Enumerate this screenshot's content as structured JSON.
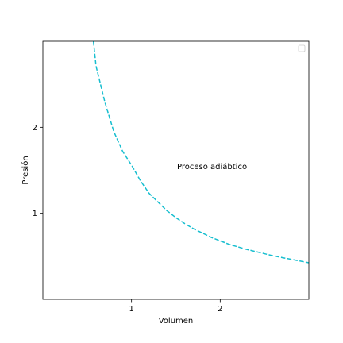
{
  "chart_data": {
    "type": "line",
    "title": "",
    "xlabel": "Volumen",
    "ylabel": "Presión",
    "xlim": [
      0,
      3
    ],
    "ylim": [
      0,
      3
    ],
    "xticks": [
      1,
      2
    ],
    "xtick_labels": [
      "1",
      "2"
    ],
    "yticks": [
      1,
      2
    ],
    "ytick_labels": [
      "1",
      "2"
    ],
    "grid": false,
    "legend": "top-right",
    "annotations": [
      {
        "text": "Proceso adiábtico",
        "x": 1.5,
        "y": 1.55
      }
    ],
    "series": [
      {
        "style": "dashed",
        "color": "#17becf",
        "x": [
          0.57,
          0.6,
          0.7,
          0.8,
          0.9,
          1.0,
          1.1,
          1.2,
          1.3,
          1.4,
          1.5,
          1.6,
          1.7,
          1.8,
          1.9,
          2.0,
          2.1,
          2.2,
          2.3,
          2.4,
          2.5,
          2.6,
          2.7,
          2.8,
          2.9,
          3.0
        ],
        "y": [
          3.0,
          2.71,
          2.29,
          1.95,
          1.72,
          1.56,
          1.38,
          1.23,
          1.13,
          1.03,
          0.95,
          0.88,
          0.82,
          0.77,
          0.72,
          0.68,
          0.64,
          0.61,
          0.58,
          0.555,
          0.53,
          0.505,
          0.485,
          0.465,
          0.445,
          0.425
        ]
      }
    ]
  }
}
